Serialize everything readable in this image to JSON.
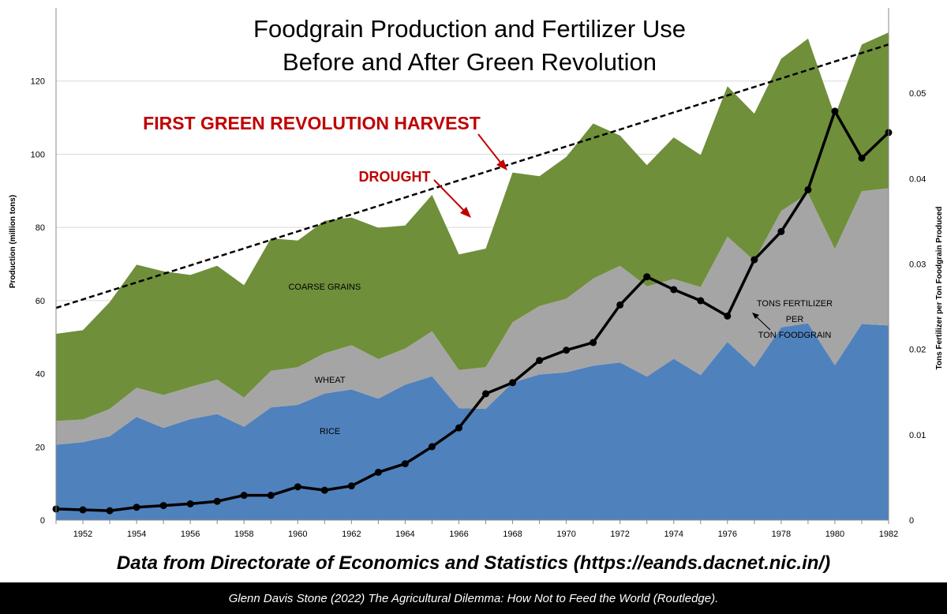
{
  "chart_data": {
    "type": "area",
    "title": "Foodgrain Production and Fertilizer Use",
    "subtitle": "Before and After Green Revolution",
    "ylabel": "Production (million tons)",
    "y2label": "Tons Fertilizer per Ton Foodgrain Produced",
    "xlabel": "",
    "ylim": [
      0,
      140
    ],
    "y2lim": [
      0,
      0.06
    ],
    "yticks": [
      "0",
      "20",
      "40",
      "60",
      "80",
      "100",
      "120"
    ],
    "y2ticks": [
      "0",
      "0.01",
      "0.02",
      "0.03",
      "0.04",
      "0.05"
    ],
    "xticks": [
      "1952",
      "1954",
      "1956",
      "1958",
      "1960",
      "1962",
      "1964",
      "1966",
      "1968",
      "1970",
      "1972",
      "1974",
      "1976",
      "1978",
      "1980",
      "1982"
    ],
    "x": [
      1951,
      1952,
      1953,
      1954,
      1955,
      1956,
      1957,
      1958,
      1959,
      1960,
      1961,
      1962,
      1963,
      1964,
      1965,
      1966,
      1967,
      1968,
      1969,
      1970,
      1971,
      1972,
      1973,
      1974,
      1975,
      1976,
      1977,
      1978,
      1979,
      1980,
      1981,
      1982
    ],
    "series": [
      {
        "name": "RICE",
        "color": "#4f81bd",
        "values": [
          20.6,
          21.3,
          22.9,
          28.2,
          25.2,
          27.6,
          29.0,
          25.5,
          30.8,
          31.5,
          34.6,
          35.7,
          33.2,
          37.0,
          39.3,
          30.6,
          30.4,
          37.6,
          39.8,
          40.4,
          42.2,
          43.1,
          39.2,
          44.1,
          39.6,
          48.7,
          41.9,
          52.7,
          53.8,
          42.3,
          53.6,
          53.2
        ]
      },
      {
        "name": "WHEAT",
        "color": "#a5a5a5",
        "values": [
          6.5,
          6.2,
          7.5,
          8.0,
          9.0,
          8.8,
          9.4,
          8.0,
          10.0,
          10.3,
          11.0,
          12.1,
          10.8,
          9.9,
          12.3,
          10.4,
          11.4,
          16.5,
          18.7,
          20.1,
          23.8,
          26.4,
          24.7,
          21.8,
          24.1,
          28.8,
          29.0,
          31.8,
          35.5,
          31.8,
          36.3,
          37.5
        ]
      },
      {
        "name": "COARSE GRAINS",
        "color": "#6f8f3a",
        "values": [
          23.8,
          24.4,
          29.2,
          33.6,
          33.8,
          30.6,
          31.1,
          30.7,
          36.2,
          34.6,
          36.2,
          34.9,
          35.9,
          33.6,
          37.3,
          31.6,
          32.4,
          40.9,
          35.5,
          38.8,
          42.4,
          35.6,
          33.1,
          38.7,
          36.1,
          41.1,
          40.2,
          41.6,
          42.3,
          36.4,
          40.1,
          42.6
        ]
      },
      {
        "name": "TONS FERTILIZER PER TON FOODGRAIN",
        "color": "#000000",
        "axis": "right",
        "values": [
          0.0013,
          0.0012,
          0.0011,
          0.0015,
          0.0017,
          0.0019,
          0.0022,
          0.0029,
          0.0029,
          0.0039,
          0.0035,
          0.004,
          0.0056,
          0.0066,
          0.0086,
          0.0108,
          0.0148,
          0.0161,
          0.0187,
          0.0199,
          0.0208,
          0.0252,
          0.0285,
          0.027,
          0.0257,
          0.0239,
          0.0305,
          0.0338,
          0.0387,
          0.0479,
          0.0424,
          0.0454
        ]
      }
    ],
    "trendline": {
      "x": [
        1951,
        1982
      ],
      "values": [
        58,
        130
      ],
      "style": "dashed"
    },
    "area_labels": [
      "COARSE GRAINS",
      "WHEAT",
      "RICE"
    ],
    "annotations": [
      {
        "text": "FIRST GREEN REVOLUTION HARVEST",
        "color": "#c00000",
        "points_to_year": 1968
      },
      {
        "text": "DROUGHT",
        "color": "#c00000",
        "points_to_year": 1966
      },
      {
        "lines": [
          "TONS FERTILIZER",
          "PER",
          "TON FOODGRAIN"
        ],
        "color": "#000000",
        "points_to_year": 1977
      }
    ],
    "grid": true
  },
  "source_line": "Data from Directorate of Economics and Statistics (https://eands.dacnet.nic.in/)",
  "citation": {
    "author_year": "Glenn Davis Stone (2022)",
    "book_title": "The Agricultural Dilemma: How Not to Feed the World",
    "publisher": "(Routledge)."
  }
}
